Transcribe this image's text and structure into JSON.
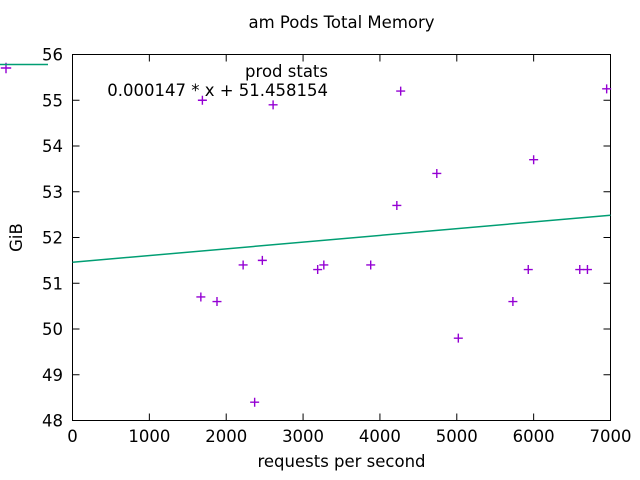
{
  "chart_data": {
    "type": "scatter",
    "title": "am Pods Total Memory",
    "xlabel": "requests per second",
    "ylabel": "GiB",
    "xlim": [
      0,
      7000
    ],
    "ylim": [
      48,
      56
    ],
    "xticks": [
      0,
      1000,
      2000,
      3000,
      4000,
      5000,
      6000,
      7000
    ],
    "yticks": [
      48,
      49,
      50,
      51,
      52,
      53,
      54,
      55,
      56
    ],
    "grid": false,
    "legend_position": "top-left-inside",
    "frame_color": "#000000",
    "text_color": "#000000",
    "series": [
      {
        "name": "prod stats",
        "type": "points",
        "marker": "plus",
        "color": "#9400d3",
        "points": [
          [
            1690,
            55.0
          ],
          [
            2610,
            54.9
          ],
          [
            4270,
            55.2
          ],
          [
            6950,
            55.25
          ],
          [
            4220,
            52.7
          ],
          [
            4740,
            53.4
          ],
          [
            6000,
            53.7
          ],
          [
            1670,
            50.7
          ],
          [
            1880,
            50.6
          ],
          [
            2220,
            51.4
          ],
          [
            2470,
            51.5
          ],
          [
            2370,
            48.4
          ],
          [
            3190,
            51.3
          ],
          [
            3270,
            51.4
          ],
          [
            3880,
            51.4
          ],
          [
            5020,
            49.8
          ],
          [
            5730,
            50.6
          ],
          [
            5930,
            51.3
          ],
          [
            6600,
            51.3
          ],
          [
            6700,
            51.3
          ]
        ]
      },
      {
        "name": "0.000147 * x + 51.458154",
        "type": "line",
        "color": "#009e73",
        "slope": 0.000147,
        "intercept": 51.458154
      }
    ]
  }
}
